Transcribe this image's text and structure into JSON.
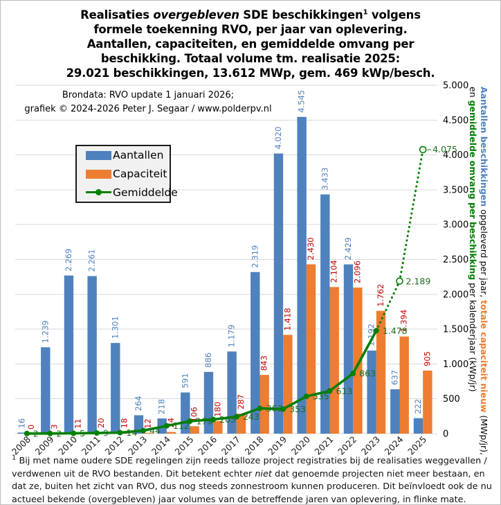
{
  "title": {
    "lines": [
      [
        {
          "t": "Realisaties "
        },
        {
          "t": "overgebleven",
          "italic": true
        },
        {
          "t": " SDE beschikkingen"
        },
        {
          "t": "1",
          "sup": true
        },
        {
          "t": "  volgens"
        }
      ],
      [
        {
          "t": "formele toekenning RVO, per jaar van oplevering."
        }
      ],
      [
        {
          "t": "Aantallen, capaciteiten, en gemiddelde omvang per"
        }
      ],
      [
        {
          "t": "beschikking.  Totaal volume tm. realisatie 2025:"
        }
      ],
      [
        {
          "t": "29.021 beschikkingen,  13.612 MWp, gem. 469 kWp/besch."
        }
      ]
    ]
  },
  "subtitle": {
    "lines": [
      "Brondata:  RVO update 1 januari  2026;",
      "grafiek  ©  2024-2026  Peter J. Segaar / www.polderpv.nl"
    ]
  },
  "legend": {
    "items": [
      {
        "label": "Aantallen",
        "type": "bar",
        "color": "#4F81BD"
      },
      {
        "label": "Capaciteit",
        "type": "bar",
        "color": "#ED7D31"
      },
      {
        "label": "Gemiddelde",
        "type": "line",
        "color": "#008000"
      }
    ]
  },
  "chart_data": {
    "type": "combo-bar-line",
    "categories": [
      "2008",
      "2009",
      "2010",
      "2011",
      "2012",
      "2013",
      "2014",
      "2015",
      "2016",
      "2017",
      "2018",
      "2019",
      "2020",
      "2021",
      "2022",
      "2023",
      "2024",
      "2025"
    ],
    "series": [
      {
        "name": "Aantallen",
        "type": "bar",
        "unit": "beschikkingen opgeleverd per jaar",
        "color": "#4F81BD",
        "label_color": "#4F81BD",
        "values": [
          16,
          1239,
          2269,
          2261,
          1301,
          264,
          218,
          591,
          886,
          1179,
          2319,
          4020,
          4545,
          3433,
          2429,
          1192,
          637,
          222
        ],
        "labels": [
          "16",
          "1.239",
          "2.269",
          "2.261",
          "1.301",
          "264",
          "218",
          "591",
          "886",
          "1.179",
          "2.319",
          "4.020",
          "4.545",
          "3.433",
          "2.429",
          "1.192",
          "637",
          "222"
        ]
      },
      {
        "name": "Capaciteit",
        "type": "bar",
        "unit": "MWp/jr",
        "color": "#ED7D31",
        "label_color": "#C00000",
        "values": [
          0,
          3,
          11,
          20,
          18,
          12,
          24,
          106,
          180,
          287,
          843,
          1418,
          2430,
          2104,
          2096,
          1762,
          1394,
          905
        ],
        "labels": [
          "0",
          "3",
          "11",
          "20",
          "18",
          "12",
          "24",
          "106",
          "180",
          "287",
          "843",
          "1.418",
          "2.430",
          "2.104",
          "2.096",
          "1.762",
          "1.394",
          "905"
        ]
      },
      {
        "name": "Gemiddelde",
        "type": "line",
        "unit": "kWp/besch",
        "color": "#008000",
        "label_color": "#1E6B1E",
        "values": [
          2,
          2,
          5,
          9,
          14,
          44,
          112,
          179,
          203,
          243,
          363,
          353,
          535,
          613,
          863,
          1478,
          2189,
          4075
        ],
        "labels": [
          "2",
          "2",
          "5",
          "9",
          "14",
          "44",
          "112",
          "179",
          "203",
          "243",
          "363",
          "353",
          "535",
          "613",
          "863",
          "1.478",
          "2.189",
          "4.075"
        ],
        "solid_through_index": 15,
        "open_markers_from_index": 16
      }
    ],
    "ylim": [
      0,
      5000
    ],
    "ytick_step": 500,
    "ytick_labels": [
      "0",
      "500",
      "1.000",
      "1.500",
      "2.000",
      "2.500",
      "3.000",
      "3.500",
      "4.000",
      "4.500",
      "5.000"
    ],
    "grid": true,
    "legend_position": "upper-left",
    "gridline_color": "#D9D9D9"
  },
  "y_axis_title": {
    "lines": [
      [
        {
          "t": "Aantallen beschikkingen",
          "bold": true,
          "color": "#4F81BD"
        },
        {
          "t": " opgeleverd per jaar, "
        },
        {
          "t": "totale capaciteit nieuw",
          "bold": true,
          "color": "#ED7D31"
        },
        {
          "t": " (MWp/jr),"
        }
      ],
      [
        {
          "t": "en "
        },
        {
          "t": "gemiddelde omvang per beschikking",
          "bold": true,
          "color": "#008000"
        },
        {
          "t": " per kalenderjaar (kWp/jr)"
        }
      ]
    ]
  },
  "footnote": {
    "segments": [
      {
        "t": "1",
        "sup": true
      },
      {
        "t": " Bij met name oudere SDE regelingen zijn reeds talloze project registraties bij de realisaties weggevallen / verdwenen uit de RVO bestanden. Dit betekent echter "
      },
      {
        "t": "niet",
        "italic": true
      },
      {
        "t": " dat genoemde projecten niet meer bestaan, en dat ze, buiten het zicht van RVO, dus nog steeds zonnestroom kunnen produceren. Dit beïnvloedt ook de nu actueel bekende (overgebleven) jaar volumes van de betreffende jaren van oplevering, in flinke mate."
      }
    ]
  }
}
